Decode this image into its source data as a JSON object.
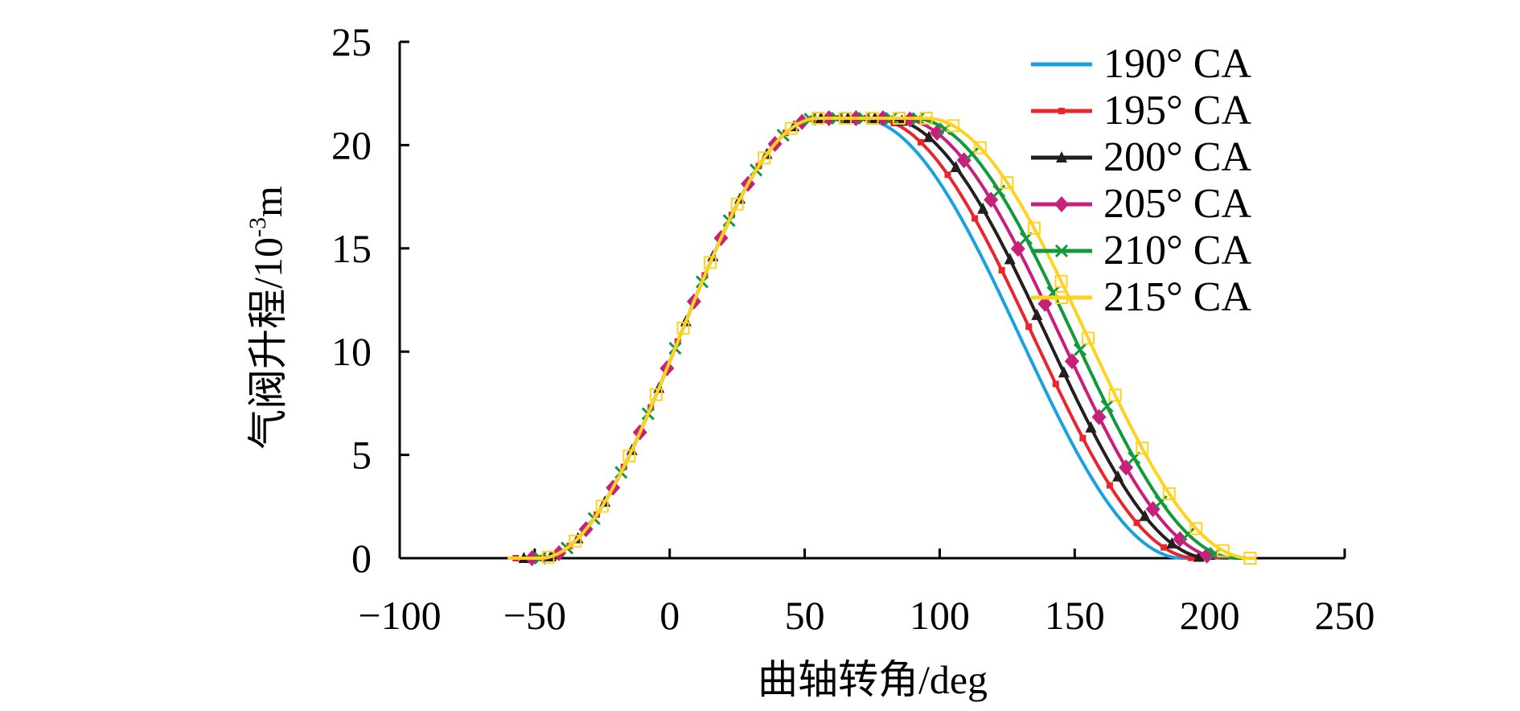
{
  "chart_data": {
    "type": "line",
    "xlabel": "曲轴转角/deg",
    "ylabel": "气阀升程/10",
    "ylabel_sup": "-3",
    "ylabel_unit": "m",
    "xlim": [
      -100,
      250
    ],
    "ylim": [
      0,
      25
    ],
    "xticks": [
      -100,
      -50,
      0,
      50,
      100,
      150,
      200,
      250
    ],
    "yticks": [
      0,
      5,
      10,
      15,
      20,
      25
    ],
    "xtick_labels": [
      "−100",
      "−50",
      "0",
      "50",
      "100",
      "150",
      "200",
      "250"
    ],
    "ytick_labels": [
      "0",
      "5",
      "10",
      "15",
      "20",
      "25"
    ],
    "grid": false,
    "legend_position": "top-right",
    "series": [
      {
        "name": "190° CA",
        "color": "#1ba1e2",
        "marker": "none",
        "open_start": -48,
        "open_end": 190,
        "peak": 21.3,
        "plateau": [
          55,
          70
        ]
      },
      {
        "name": "195° CA",
        "color": "#e8262b",
        "marker": "square-small",
        "open_start": -48,
        "open_end": 195,
        "peak": 21.3,
        "plateau": [
          55,
          75
        ]
      },
      {
        "name": "200° CA",
        "color": "#231f20",
        "marker": "triangle",
        "open_start": -48,
        "open_end": 200,
        "peak": 21.3,
        "plateau": [
          55,
          80
        ]
      },
      {
        "name": "205° CA",
        "color": "#c7207b",
        "marker": "diamond",
        "open_start": -48,
        "open_end": 205,
        "peak": 21.3,
        "plateau": [
          55,
          85
        ]
      },
      {
        "name": "210° CA",
        "color": "#109a3c",
        "marker": "x",
        "open_start": -48,
        "open_end": 210,
        "peak": 21.3,
        "plateau": [
          55,
          90
        ]
      },
      {
        "name": "215° CA",
        "color": "#ffd21f",
        "marker": "square-open",
        "open_start": -48,
        "open_end": 215,
        "peak": 21.3,
        "plateau": [
          55,
          95
        ]
      }
    ]
  }
}
